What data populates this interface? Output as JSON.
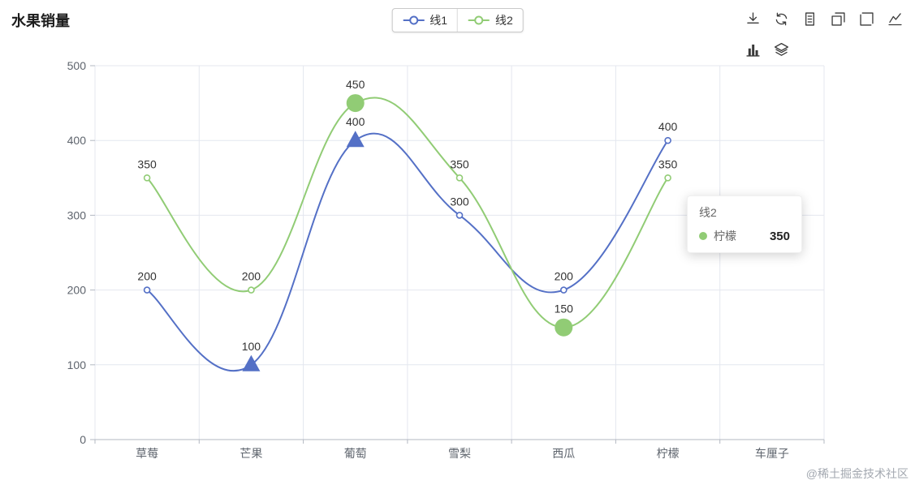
{
  "title": "水果销量",
  "legend": {
    "items": [
      {
        "label": "线1",
        "color": "#5470c6"
      },
      {
        "label": "线2",
        "color": "#91cc75"
      }
    ]
  },
  "toolbox": {
    "row1": [
      "download-icon",
      "refresh-icon",
      "data-view-icon",
      "data-zoom-icon",
      "zoom-reset-icon",
      "line-chart-icon"
    ],
    "row2": [
      "bar-chart-icon",
      "stack-icon"
    ]
  },
  "chart_data": {
    "type": "line",
    "title": "水果销量",
    "categories": [
      "草莓",
      "芒果",
      "葡萄",
      "雪梨",
      "西瓜",
      "柠檬",
      "车厘子"
    ],
    "series": [
      {
        "name": "线1",
        "color": "#5470c6",
        "smooth": true,
        "values": [
          200,
          100,
          400,
          300,
          200,
          400,
          null
        ]
      },
      {
        "name": "线2",
        "color": "#91cc75",
        "smooth": true,
        "values": [
          350,
          200,
          450,
          350,
          150,
          350,
          null
        ]
      }
    ],
    "ylim": [
      0,
      500
    ],
    "yticks": [
      0,
      100,
      200,
      300,
      400,
      500
    ],
    "grid": true,
    "legend_position": "top-center",
    "point_labels": true,
    "mark_points": [
      {
        "series": "线1",
        "category": "芒果",
        "value": 100,
        "symbol": "triangle",
        "type": "min"
      },
      {
        "series": "线1",
        "category": "葡萄",
        "value": 400,
        "symbol": "triangle",
        "type": "max"
      },
      {
        "series": "线2",
        "category": "葡萄",
        "value": 450,
        "symbol": "circle",
        "type": "max"
      },
      {
        "series": "线2",
        "category": "西瓜",
        "value": 150,
        "symbol": "circle",
        "type": "min"
      }
    ]
  },
  "tooltip": {
    "series": "线2",
    "marker_color": "#91cc75",
    "item": "柠檬",
    "value": "350"
  },
  "watermark": "@稀土掘金技术社区"
}
